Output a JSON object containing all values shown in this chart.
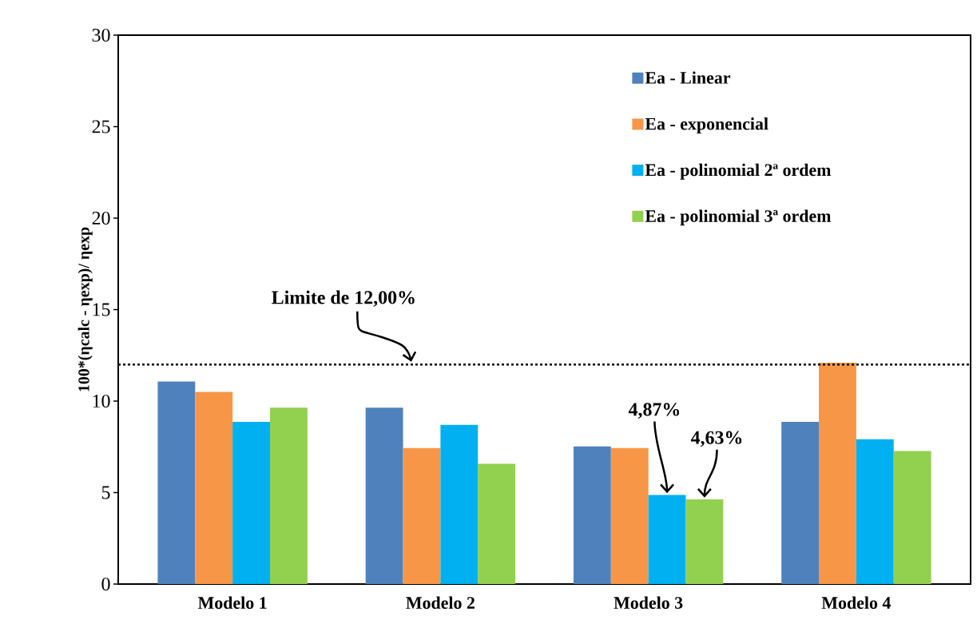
{
  "chart_data": {
    "type": "bar",
    "categories": [
      "Modelo 1",
      "Modelo 2",
      "Modelo 3",
      "Modelo 4"
    ],
    "ylabel": "100*(ηcalc - ηexp)/ ηexp",
    "ylim": [
      0,
      30
    ],
    "yticks": [
      0,
      5,
      10,
      15,
      20,
      25,
      30
    ],
    "legend": "top right",
    "grid": false,
    "series": [
      {
        "name": "Ea - Linear",
        "color": "#4f81bd",
        "values": [
          11.07,
          9.64,
          7.52,
          8.87
        ]
      },
      {
        "name": "Ea - exponencial",
        "color": "#f79646",
        "values": [
          10.5,
          7.43,
          7.43,
          12.1
        ]
      },
      {
        "name": "Ea - polinomial 2ª ordem",
        "color": "#00b0f0",
        "values": [
          8.87,
          8.7,
          4.87,
          7.91
        ]
      },
      {
        "name": "Ea - polinomial 3ª ordem",
        "color": "#92d050",
        "values": [
          9.64,
          6.57,
          4.63,
          7.27
        ]
      }
    ],
    "ref_lines": [
      {
        "axis": "y",
        "value": 12,
        "label": "Limite de 12,00%",
        "color": "#000000",
        "line_style": "dotted"
      }
    ],
    "annotations": [
      "4,87%",
      "4,63%"
    ]
  }
}
